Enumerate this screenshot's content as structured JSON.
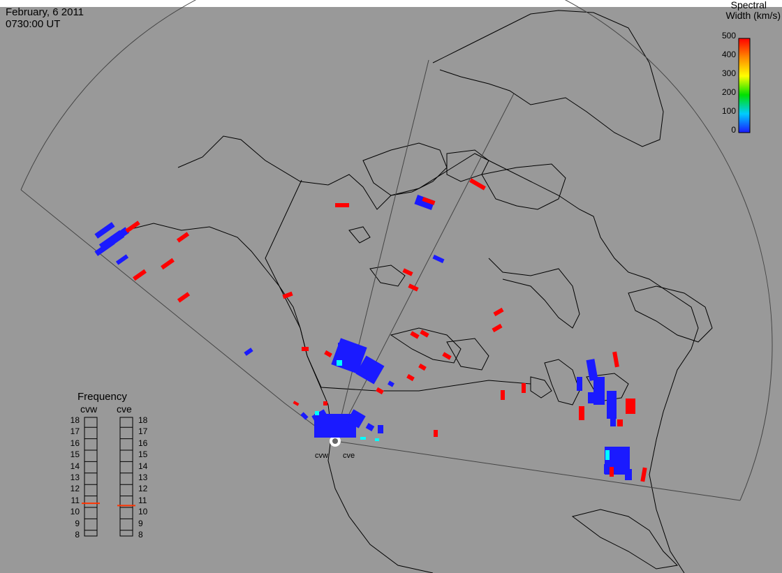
{
  "header": {
    "date": "February, 6 2011",
    "time": "0730:00 UT"
  },
  "colorbar": {
    "title_line1": "Spectral",
    "title_line2": "Width (km/s)",
    "ticks": [
      "500",
      "400",
      "300",
      "200",
      "100",
      "0"
    ],
    "range": [
      0,
      500
    ],
    "colors": [
      "#1a1aff",
      "#00ccff",
      "#00e000",
      "#ffff00",
      "#ff8800",
      "#ff0000"
    ]
  },
  "radars": [
    {
      "code": "cvw"
    },
    {
      "code": "cve"
    }
  ],
  "frequency": {
    "title": "Frequency",
    "columns": [
      "cvw",
      "cve"
    ],
    "levels": [
      "18",
      "17",
      "16",
      "15",
      "14",
      "13",
      "12",
      "11",
      "10",
      "9",
      "8"
    ],
    "values_mhz": {
      "cvw": 10.8,
      "cve": 10.6
    },
    "marker_color": "#ff3300"
  },
  "scatter_color": {
    "low": "#1a1aff",
    "high": "#ff0000",
    "mid": "#00ffff"
  }
}
